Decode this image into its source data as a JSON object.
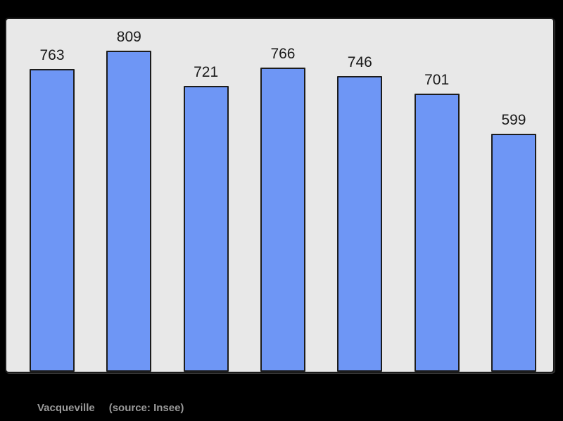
{
  "chart_data": {
    "type": "bar",
    "values": [
      763,
      809,
      721,
      766,
      746,
      701,
      599
    ],
    "title": "",
    "xlabel": "",
    "ylabel": "",
    "ylim": [
      0,
      890
    ],
    "grid": false,
    "legend": "none",
    "bar_value_labels_shown": true
  },
  "caption": {
    "name": "Vacqueville",
    "source": "(source: Insee)"
  },
  "colors": {
    "page_bg": "#000000",
    "panel_bg": "#e8e8e8",
    "panel_border": "#1a1a1a",
    "bar_fill": "#6e96f5",
    "bar_stroke": "#1c1c1c",
    "label_color": "#1a1a1a",
    "caption_color": "#9a9a9a"
  }
}
